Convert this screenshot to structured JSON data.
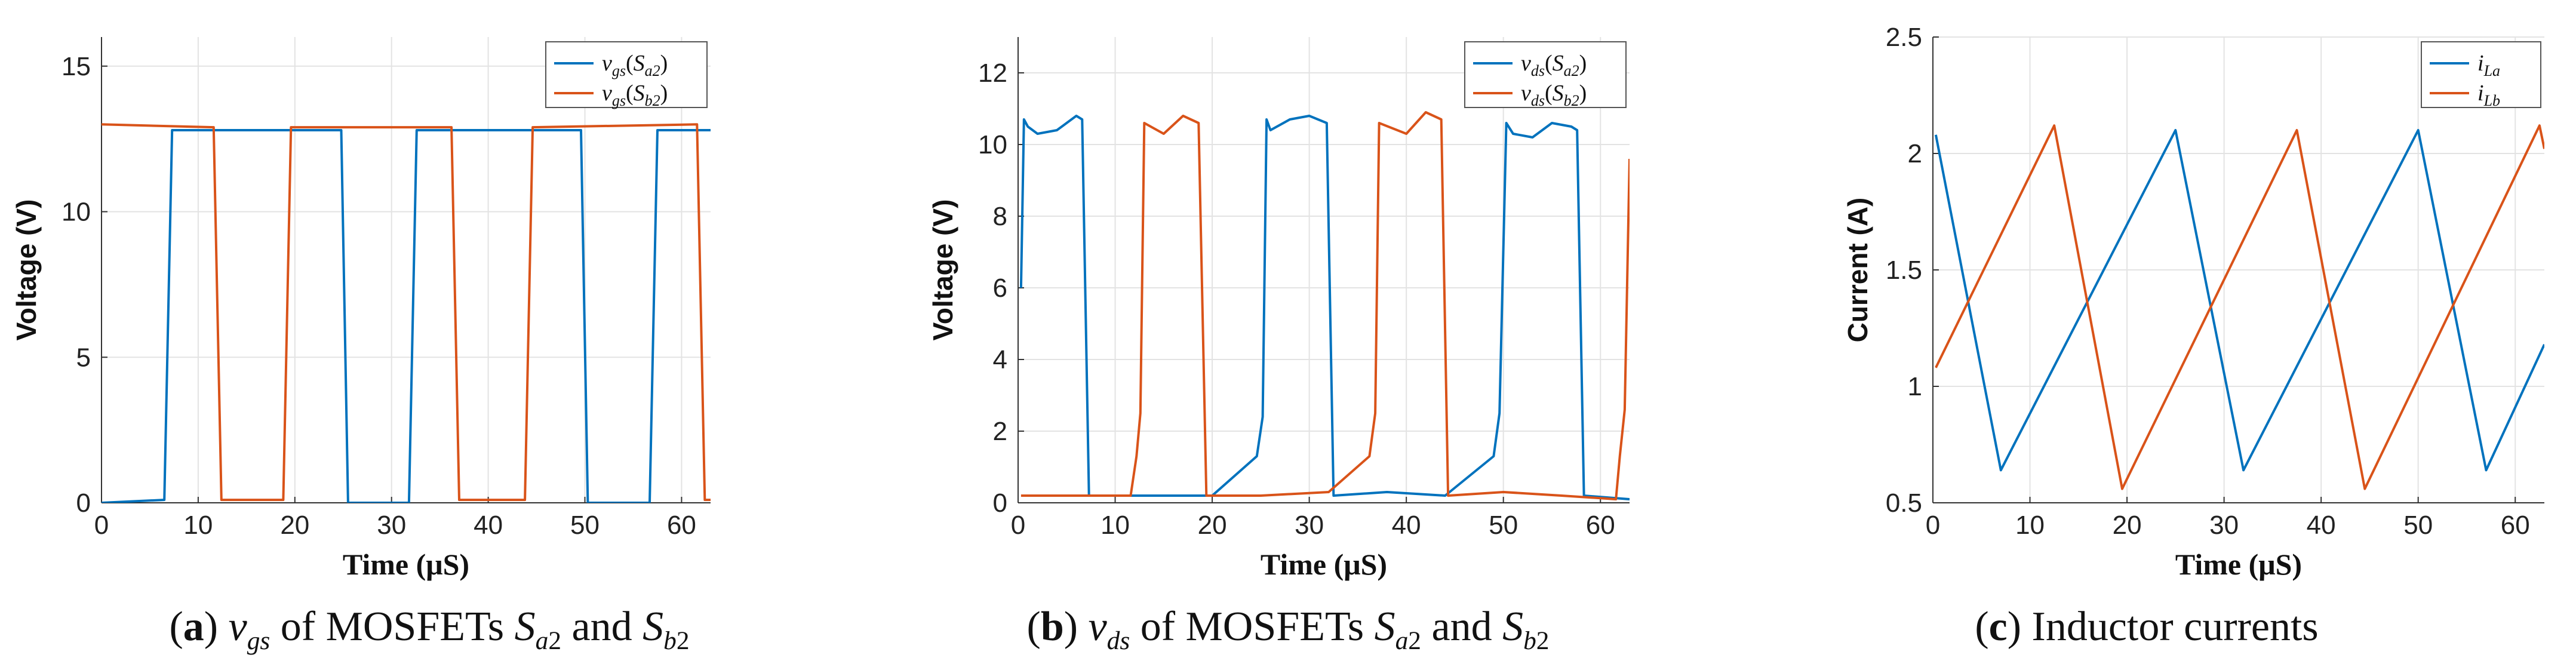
{
  "colors": {
    "series1": "#0072BD",
    "series2": "#D95319",
    "grid": "#e3e3e3",
    "axis": "#333333"
  },
  "chart_data": [
    {
      "id": "a",
      "type": "line",
      "xlabel": "Time (μS)",
      "ylabel": "Voltage (V)",
      "xlim": [
        0,
        63
      ],
      "ylim": [
        0,
        16
      ],
      "xticks": [
        0,
        10,
        20,
        30,
        40,
        50,
        60
      ],
      "yticks": [
        0,
        5,
        10,
        15
      ],
      "legend_position": "top-right",
      "legend": [
        "v_gs(S_a2)",
        "v_gs(S_b2)"
      ],
      "caption": {
        "label": "a",
        "text": "v_gs of MOSFETs S_a2 and S_b2"
      },
      "series": [
        {
          "name": "v_gs(S_a2)",
          "color": "#0072BD",
          "x": [
            0,
            6.5,
            7.3,
            12.2,
            24.8,
            25.5,
            31.8,
            32.6,
            37.5,
            49.6,
            50.3,
            56.7,
            57.5,
            63
          ],
          "y": [
            0,
            0.1,
            12.8,
            12.8,
            12.8,
            0,
            0,
            12.8,
            12.8,
            12.8,
            0,
            0,
            12.8,
            12.8
          ]
        },
        {
          "name": "v_gs(S_b2)",
          "color": "#D95319",
          "x": [
            0,
            11.6,
            12.4,
            18.8,
            19.6,
            36.2,
            37.0,
            43.8,
            44.6,
            61.6,
            62.4,
            63
          ],
          "y": [
            13.0,
            12.9,
            0.1,
            0.1,
            12.9,
            12.9,
            0.1,
            0.1,
            12.9,
            13.0,
            0.1,
            0.1
          ]
        }
      ]
    },
    {
      "id": "b",
      "type": "line",
      "xlabel": "Time (μS)",
      "ylabel": "Voltage (V)",
      "xlim": [
        0,
        63
      ],
      "ylim": [
        0,
        13
      ],
      "xticks": [
        0,
        10,
        20,
        30,
        40,
        50,
        60
      ],
      "yticks": [
        0,
        2,
        4,
        6,
        8,
        10,
        12
      ],
      "legend_position": "top-right",
      "legend": [
        "v_ds(S_a2)",
        "v_ds(S_b2)"
      ],
      "caption": {
        "label": "b",
        "text": "v_ds of MOSFETs S_a2 and S_b2"
      },
      "series": [
        {
          "name": "v_ds(S_a2)",
          "color": "#0072BD",
          "x": [
            0.3,
            0.6,
            1.0,
            2.0,
            4.0,
            6.0,
            6.6,
            7.3,
            12.0,
            20.0,
            24.6,
            25.2,
            25.6,
            26.0,
            28.0,
            30.0,
            31.8,
            32.5,
            38.0,
            44.0,
            49.0,
            49.6,
            50.3,
            51.0,
            53.0,
            55.0,
            57.0,
            57.6,
            58.3,
            63
          ],
          "y": [
            6.0,
            10.7,
            10.5,
            10.3,
            10.4,
            10.8,
            10.7,
            0.2,
            0.2,
            0.2,
            1.3,
            2.4,
            10.7,
            10.4,
            10.7,
            10.8,
            10.6,
            0.2,
            0.3,
            0.2,
            1.3,
            2.5,
            10.6,
            10.3,
            10.2,
            10.6,
            10.5,
            10.4,
            0.2,
            0.1
          ]
        },
        {
          "name": "v_ds(S_b2)",
          "color": "#D95319",
          "x": [
            0.3,
            11.6,
            12.2,
            12.6,
            13.0,
            15.0,
            17.0,
            18.6,
            19.4,
            25.0,
            32.0,
            36.2,
            36.8,
            37.2,
            40.0,
            42.0,
            43.6,
            44.3,
            50.0,
            56.0,
            61.6,
            62.0,
            62.5,
            63
          ],
          "y": [
            0.2,
            0.2,
            1.3,
            2.5,
            10.6,
            10.3,
            10.8,
            10.6,
            0.2,
            0.2,
            0.3,
            1.3,
            2.5,
            10.6,
            10.3,
            10.9,
            10.7,
            0.2,
            0.3,
            0.2,
            0.1,
            1.3,
            2.6,
            9.6
          ]
        }
      ]
    },
    {
      "id": "c",
      "type": "line",
      "xlabel": "Time (μS)",
      "ylabel": "Current (A)",
      "xlim": [
        0,
        63
      ],
      "ylim": [
        0.5,
        2.5
      ],
      "xticks": [
        0,
        10,
        20,
        30,
        40,
        50,
        60
      ],
      "yticks": [
        0.5,
        1,
        1.5,
        2,
        2.5
      ],
      "ytick_labels": [
        "0.5",
        "1",
        "1.5",
        "2",
        "2.5"
      ],
      "legend_position": "top-right",
      "legend": [
        "i_La",
        "i_Lb"
      ],
      "caption": {
        "label": "c",
        "text": "Inductor currents"
      },
      "series": [
        {
          "name": "i_La",
          "color": "#0072BD",
          "x": [
            0.3,
            7.0,
            25.0,
            32.0,
            50.0,
            57.0,
            63
          ],
          "y": [
            2.08,
            0.64,
            2.1,
            0.64,
            2.1,
            0.64,
            1.18
          ]
        },
        {
          "name": "i_Lb",
          "color": "#D95319",
          "x": [
            0.3,
            12.5,
            19.5,
            37.5,
            44.5,
            62.5,
            63
          ],
          "y": [
            1.08,
            2.12,
            0.56,
            2.1,
            0.56,
            2.12,
            2.02
          ]
        }
      ]
    }
  ]
}
